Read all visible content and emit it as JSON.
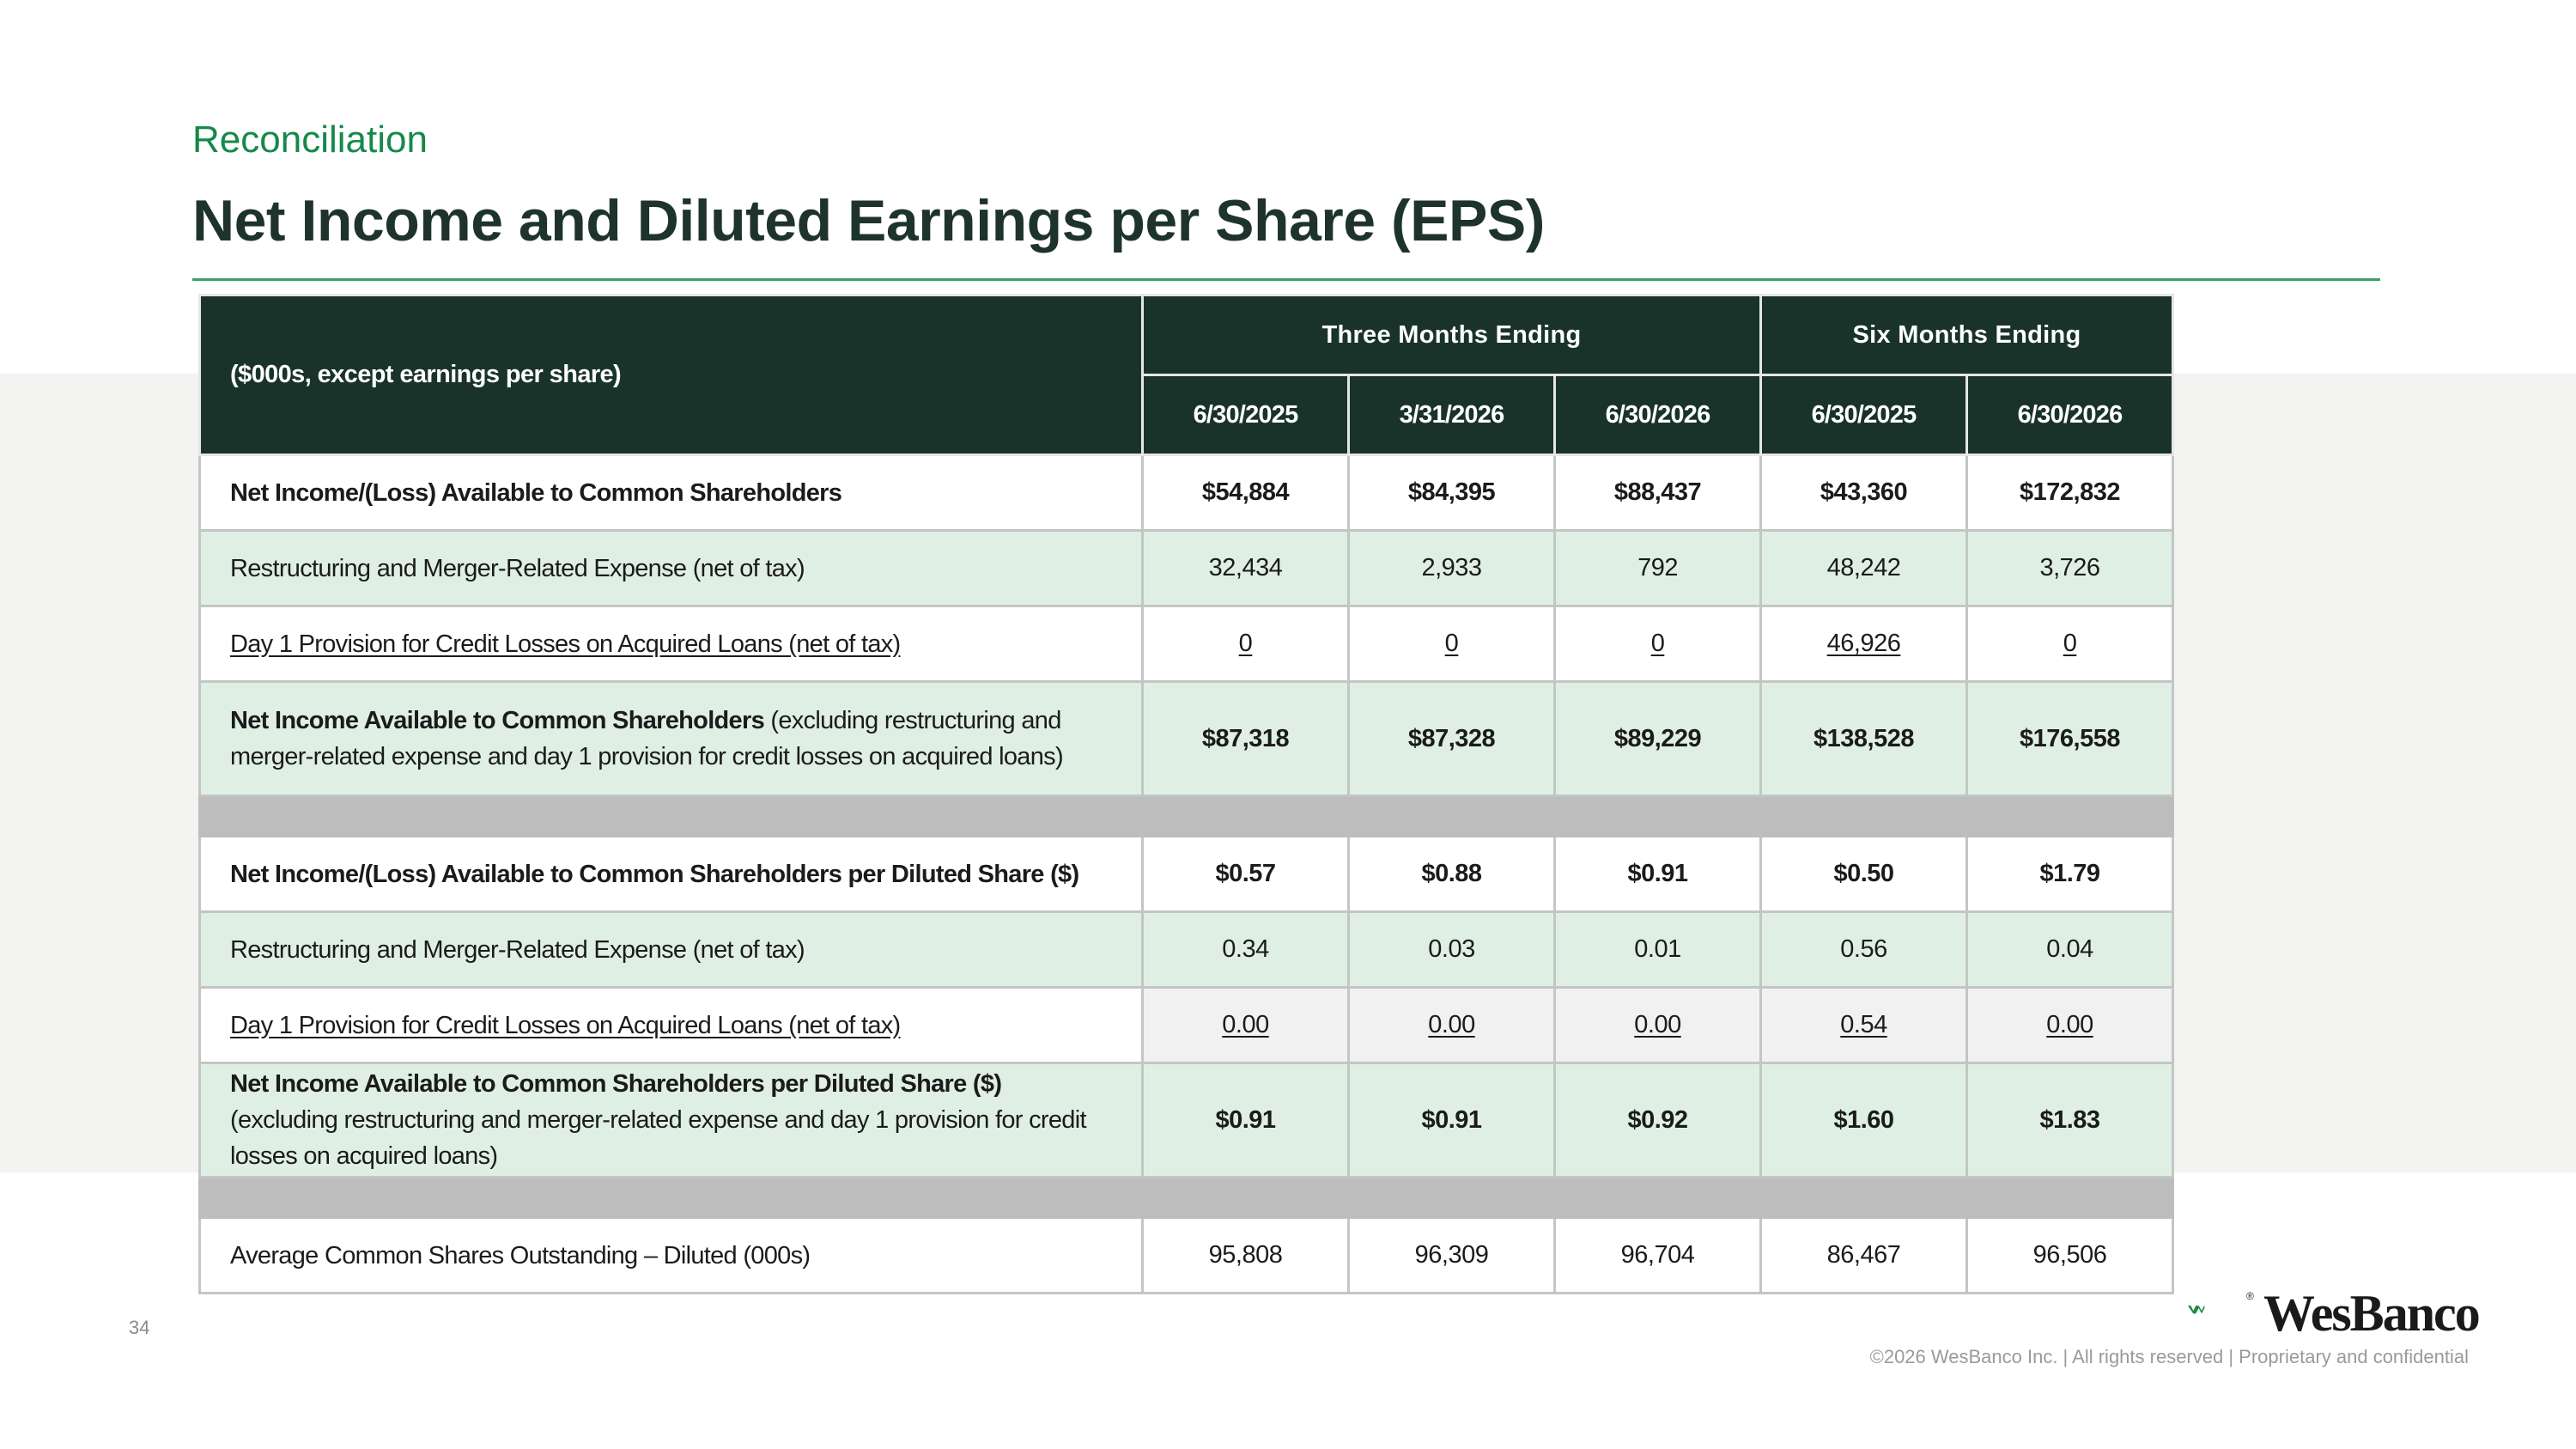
{
  "header": {
    "subtitle": "Reconciliation",
    "title": "Net Income and Diluted Earnings per Share (EPS)"
  },
  "table": {
    "corner_label": "($000s, except earnings per share)",
    "groups": [
      "Three Months Ending",
      "Six Months Ending"
    ],
    "dates": [
      "6/30/2025",
      "3/31/2026",
      "6/30/2026",
      "6/30/2025",
      "6/30/2026"
    ],
    "rows": [
      {
        "label": "Net Income/(Loss) Available to Common Shareholders",
        "values": [
          "$54,884",
          "$84,395",
          "$88,437",
          "$43,360",
          "$172,832"
        ]
      },
      {
        "label": "Restructuring and Merger-Related Expense (net of tax)",
        "values": [
          "32,434",
          "2,933",
          "792",
          "48,242",
          "3,726"
        ]
      },
      {
        "label": "Day 1 Provision for Credit Losses on Acquired Loans (net of tax)",
        "values": [
          "0",
          "0",
          "0",
          "46,926",
          "0"
        ]
      },
      {
        "label_bold": "Net Income Available to Common Shareholders",
        "label_rest": " (excluding restructuring and merger-related expense and day 1 provision for credit losses on acquired loans)",
        "values": [
          "$87,318",
          "$87,328",
          "$89,229",
          "$138,528",
          "$176,558"
        ]
      },
      {
        "label": "Net Income/(Loss) Available to Common Shareholders per Diluted Share ($)",
        "values": [
          "$0.57",
          "$0.88",
          "$0.91",
          "$0.50",
          "$1.79"
        ]
      },
      {
        "label": "Restructuring and Merger-Related Expense (net of tax)",
        "values": [
          "0.34",
          "0.03",
          "0.01",
          "0.56",
          "0.04"
        ]
      },
      {
        "label": "Day 1 Provision for Credit Losses on Acquired Loans (net of tax)",
        "values": [
          "0.00",
          "0.00",
          "0.00",
          "0.54",
          "0.00"
        ]
      },
      {
        "label_bold": "Net Income Available to Common Shareholders per Diluted Share ($)",
        "label_rest": "(excluding restructuring and merger-related expense and day 1 provision for credit losses on acquired loans)",
        "values": [
          "$0.91",
          "$0.91",
          "$0.92",
          "$1.60",
          "$1.83"
        ]
      },
      {
        "label": "Average Common Shares Outstanding – Diluted (000s)",
        "values": [
          "95,808",
          "96,309",
          "96,704",
          "86,467",
          "96,506"
        ]
      }
    ]
  },
  "page_number": "34",
  "logo": {
    "name": "WesBanco",
    "reg_mark": "®",
    "icon": "wesbanco-chevron-logo-icon",
    "color": "#1f8a45"
  },
  "footer": "©2026 WesBanco Inc.  |  All rights reserved  |  Proprietary and confidential",
  "colors": {
    "header_fill": "#19332b",
    "accent_green": "#15894a",
    "row_green": "#dfefe4",
    "separator": "#bdbdbd"
  }
}
